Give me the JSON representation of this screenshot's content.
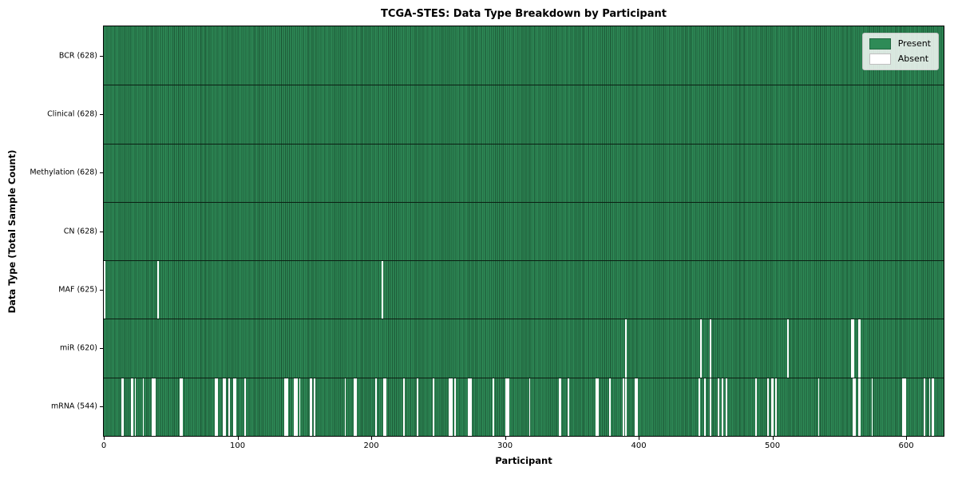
{
  "title": "TCGA-STES: Data Type Breakdown by Participant",
  "xlabel": "Participant",
  "ylabel": "Data Type (Total Sample Count)",
  "legend": {
    "present_label": "Present",
    "absent_label": "Absent"
  },
  "colors": {
    "present": "#2e8b57",
    "present_edge": "#1d5a37",
    "absent": "#ffffff",
    "separator": "#000000",
    "legend_border": "#c9c9c9"
  },
  "chart_data": {
    "type": "heatmap",
    "title": "TCGA-STES: Data Type Breakdown by Participant",
    "xlabel": "Participant",
    "ylabel": "Data Type (Total Sample Count)",
    "legend_entries": [
      "Present",
      "Absent"
    ],
    "legend_position": "upper right",
    "grid": false,
    "n_participants": 628,
    "x_range": [
      0,
      628
    ],
    "x_ticks": [
      0,
      100,
      200,
      300,
      400,
      500,
      600
    ],
    "rows": [
      {
        "label": "BCR (628)",
        "data_type": "BCR",
        "present_count": 628,
        "absent_participants": []
      },
      {
        "label": "Clinical (628)",
        "data_type": "Clinical",
        "present_count": 628,
        "absent_participants": []
      },
      {
        "label": "Methylation (628)",
        "data_type": "Methylation",
        "present_count": 628,
        "absent_participants": []
      },
      {
        "label": "CN (628)",
        "data_type": "CN",
        "present_count": 628,
        "absent_participants": []
      },
      {
        "label": "MAF (625)",
        "data_type": "MAF",
        "present_count": 625,
        "absent_participants": [
          0,
          40,
          208
        ]
      },
      {
        "label": "miR (620)",
        "data_type": "miR",
        "present_count": 620,
        "absent_participants": [
          390,
          446,
          453,
          511,
          559,
          560,
          564,
          565
        ]
      },
      {
        "label": "mRNA (544)",
        "data_type": "mRNA",
        "present_count": 544,
        "absent_participants": [
          13,
          14,
          20,
          21,
          23,
          29,
          36,
          37,
          38,
          57,
          58,
          83,
          84,
          89,
          90,
          93,
          97,
          98,
          105,
          135,
          136,
          137,
          142,
          143,
          144,
          146,
          154,
          155,
          157,
          180,
          187,
          188,
          203,
          209,
          210,
          224,
          234,
          246,
          258,
          259,
          260,
          262,
          272,
          273,
          274,
          291,
          300,
          301,
          302,
          318,
          340,
          341,
          347,
          368,
          369,
          378,
          388,
          390,
          397,
          398,
          445,
          449,
          453,
          459,
          462,
          465,
          487,
          496,
          499,
          500,
          502,
          534,
          560,
          561,
          564,
          565,
          574,
          597,
          598,
          599,
          613,
          617,
          619,
          620
        ]
      }
    ]
  }
}
